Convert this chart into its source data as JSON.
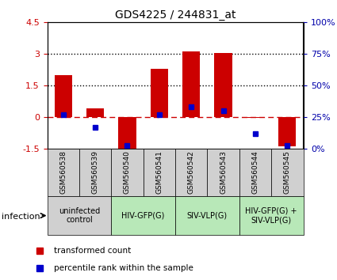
{
  "title": "GDS4225 / 244831_at",
  "samples": [
    "GSM560538",
    "GSM560539",
    "GSM560540",
    "GSM560541",
    "GSM560542",
    "GSM560543",
    "GSM560544",
    "GSM560545"
  ],
  "bar_values": [
    2.0,
    0.4,
    -1.55,
    2.3,
    3.1,
    3.05,
    -0.05,
    -1.4
  ],
  "percentile_values": [
    27,
    17,
    2,
    27,
    33,
    30,
    12,
    2
  ],
  "ylim_left": [
    -1.5,
    4.5
  ],
  "ylim_right": [
    0,
    100
  ],
  "yticks_left": [
    -1.5,
    0,
    1.5,
    3.0,
    4.5
  ],
  "yticks_right": [
    0,
    25,
    50,
    75,
    100
  ],
  "ytick_labels_left": [
    "-1.5",
    "0",
    "1.5",
    "3",
    "4.5"
  ],
  "ytick_labels_right": [
    "0%",
    "25%",
    "50%",
    "75%",
    "100%"
  ],
  "dotted_lines": [
    1.5,
    3.0
  ],
  "bar_color": "#CC0000",
  "blue_color": "#0000CC",
  "dashed_line_color": "#CC0000",
  "groups": [
    {
      "label": "uninfected\ncontrol",
      "start": 0,
      "end": 2,
      "bg": "#d0d0d0"
    },
    {
      "label": "HIV-GFP(G)",
      "start": 2,
      "end": 4,
      "bg": "#b8e8b8"
    },
    {
      "label": "SIV-VLP(G)",
      "start": 4,
      "end": 6,
      "bg": "#b8e8b8"
    },
    {
      "label": "HIV-GFP(G) +\nSIV-VLP(G)",
      "start": 6,
      "end": 8,
      "bg": "#b8e8b8"
    }
  ],
  "infection_label": "infection",
  "legend_items": [
    {
      "color": "#CC0000",
      "label": "transformed count"
    },
    {
      "color": "#0000CC",
      "label": "percentile rank within the sample"
    }
  ],
  "bar_width": 0.55,
  "tick_label_color_left": "#CC0000",
  "tick_label_color_right": "#0000AA"
}
